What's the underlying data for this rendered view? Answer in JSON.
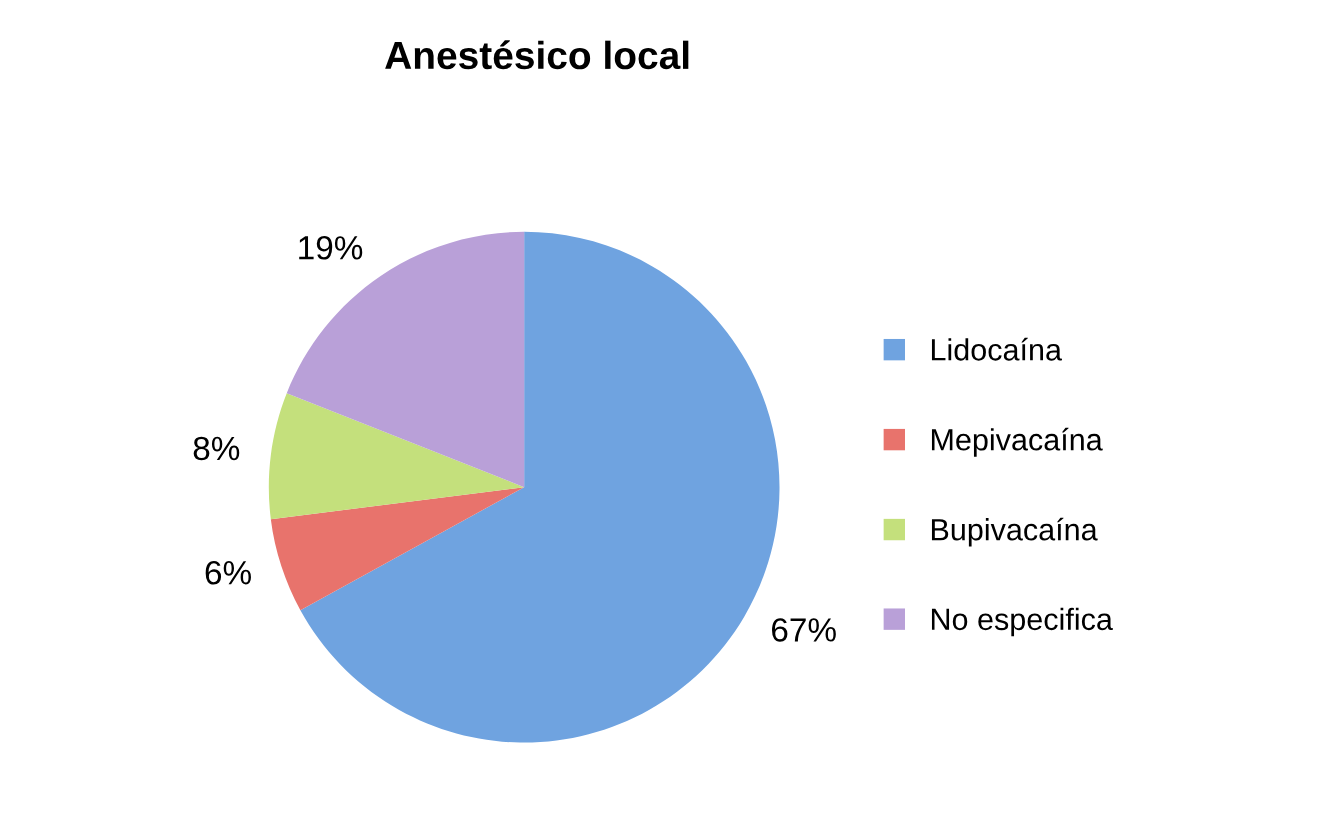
{
  "chart_data": {
    "type": "pie",
    "title": "Anestésico local",
    "categories": [
      "Lidocaína",
      "Mepivacaína",
      "Bupivacaína",
      "No especifica"
    ],
    "values": [
      67,
      6,
      8,
      19
    ],
    "colors": [
      "#6fa3e0",
      "#e8736c",
      "#c4e07c",
      "#b9a0d8"
    ],
    "value_labels": [
      "67%",
      "6%",
      "8%",
      "19%"
    ],
    "legend": "right"
  }
}
